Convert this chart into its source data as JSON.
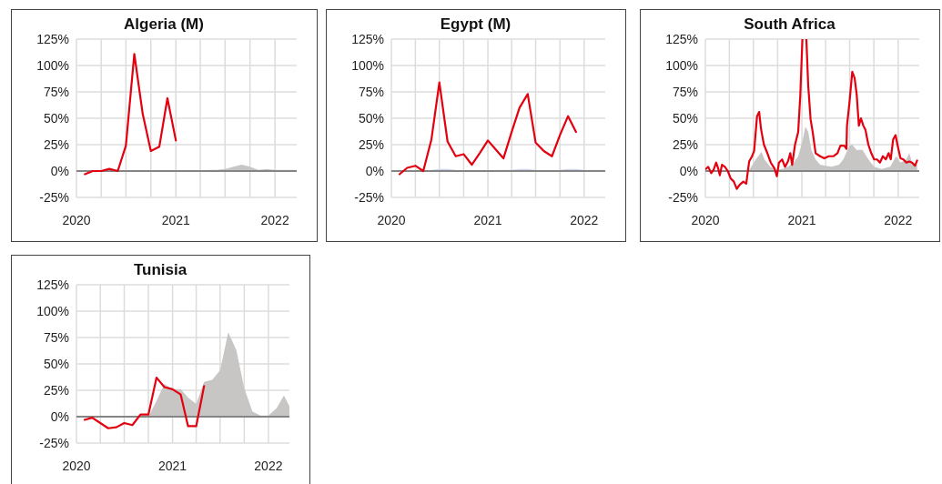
{
  "chart_data": [
    {
      "type": "line",
      "title": "Algeria (M)",
      "grid": true,
      "xlim": [
        "2020-01-01",
        "2022-03-22"
      ],
      "ylim": [
        -25,
        125
      ],
      "xticks": [
        {
          "value": "2020-01-01",
          "label": "2020"
        },
        {
          "value": "2020-04-01",
          "label": null
        },
        {
          "value": "2020-07-01",
          "label": null
        },
        {
          "value": "2020-10-01",
          "label": null
        },
        {
          "value": "2021-01-01",
          "label": "2021"
        },
        {
          "value": "2021-04-01",
          "label": null
        },
        {
          "value": "2021-07-01",
          "label": null
        },
        {
          "value": "2021-10-01",
          "label": null
        },
        {
          "value": "2022-01-01",
          "label": "2022"
        }
      ],
      "yticks": [
        {
          "value": -25,
          "label": "-25%"
        },
        {
          "value": 0,
          "label": "0%"
        },
        {
          "value": 25,
          "label": "25%"
        },
        {
          "value": 50,
          "label": "50%"
        },
        {
          "value": 75,
          "label": "75%"
        },
        {
          "value": 100,
          "label": "100%"
        },
        {
          "value": 125,
          "label": "125%"
        }
      ],
      "series": [
        {
          "type": "area",
          "color": "#c8c6c5",
          "x": [
            "2020-01",
            "2020-04",
            "2020-07",
            "2020-10",
            "2021-01",
            "2021-03",
            "2021-04",
            "2021-05",
            "2021-06",
            "2021-07",
            "2021-08",
            "2021-09",
            "2021-10",
            "2021-11",
            "2021-12",
            "2022-01",
            "2022-02",
            "2022-03",
            "2022-03-22"
          ],
          "values": [
            0,
            0,
            0,
            0,
            0,
            0,
            0,
            1,
            1,
            2,
            4,
            6,
            4,
            1,
            2,
            1,
            1,
            1,
            1
          ]
        },
        {
          "color": "#e3000f",
          "x": [
            "2020-02",
            "2020-03",
            "2020-04",
            "2020-05",
            "2020-06",
            "2020-07",
            "2020-08",
            "2020-09",
            "2020-10",
            "2020-11",
            "2020-12",
            "2021-01"
          ],
          "values": [
            -3,
            0,
            0,
            2,
            0,
            24,
            111,
            54,
            19,
            23,
            69,
            29
          ]
        }
      ]
    },
    {
      "type": "line",
      "title": "Egypt (M)",
      "grid": true,
      "xlim": [
        "2020-01-01",
        "2022-03-22"
      ],
      "ylim": [
        -25,
        125
      ],
      "xticks": [
        {
          "value": "2020-01-01",
          "label": "2020"
        },
        {
          "value": "2020-04-01",
          "label": null
        },
        {
          "value": "2020-07-01",
          "label": null
        },
        {
          "value": "2020-10-01",
          "label": null
        },
        {
          "value": "2021-01-01",
          "label": "2021"
        },
        {
          "value": "2021-04-01",
          "label": null
        },
        {
          "value": "2021-07-01",
          "label": null
        },
        {
          "value": "2021-10-01",
          "label": null
        },
        {
          "value": "2022-01-01",
          "label": "2022"
        }
      ],
      "yticks": [
        {
          "value": -25,
          "label": "-25%"
        },
        {
          "value": 0,
          "label": "0%"
        },
        {
          "value": 25,
          "label": "25%"
        },
        {
          "value": 50,
          "label": "50%"
        },
        {
          "value": 75,
          "label": "75%"
        },
        {
          "value": 100,
          "label": "100%"
        },
        {
          "value": 125,
          "label": "125%"
        }
      ],
      "series": [
        {
          "type": "area",
          "color": "#cdd3ea",
          "x": [
            "2020-01",
            "2020-05",
            "2020-06",
            "2020-07",
            "2020-08",
            "2020-09",
            "2020-10",
            "2021-01",
            "2021-02",
            "2021-03",
            "2021-04",
            "2021-05",
            "2021-06",
            "2021-07",
            "2021-08",
            "2021-09",
            "2021-10",
            "2021-11",
            "2021-12",
            "2022-01",
            "2022-02",
            "2022-03",
            "2022-03-22"
          ],
          "values": [
            0,
            0,
            1,
            2,
            2,
            1,
            0,
            0,
            1,
            1,
            1,
            2,
            2,
            1,
            0,
            0,
            1,
            2,
            2,
            1,
            1,
            1,
            1
          ]
        },
        {
          "color": "#e3000f",
          "x": [
            "2020-02",
            "2020-03",
            "2020-04",
            "2020-05",
            "2020-06",
            "2020-07",
            "2020-08",
            "2020-09",
            "2020-10",
            "2020-11",
            "2020-12",
            "2021-01",
            "2021-02",
            "2021-03",
            "2021-04",
            "2021-05",
            "2021-06",
            "2021-07",
            "2021-08",
            "2021-09",
            "2021-10",
            "2021-11",
            "2021-12"
          ],
          "values": [
            -3,
            3,
            5,
            0,
            30,
            84,
            28,
            14,
            16,
            6,
            17,
            29,
            20,
            12,
            37,
            60,
            73,
            27,
            19,
            14,
            34,
            52,
            37
          ]
        }
      ]
    },
    {
      "type": "line",
      "title": "South Africa",
      "grid": true,
      "xlim": [
        "2020-01-01",
        "2022-03-22"
      ],
      "ylim": [
        -25,
        125
      ],
      "xticks": [
        {
          "value": "2020-01-01",
          "label": "2020"
        },
        {
          "value": "2020-04-01",
          "label": null
        },
        {
          "value": "2020-07-01",
          "label": null
        },
        {
          "value": "2020-10-01",
          "label": null
        },
        {
          "value": "2021-01-01",
          "label": "2021"
        },
        {
          "value": "2021-04-01",
          "label": null
        },
        {
          "value": "2021-07-01",
          "label": null
        },
        {
          "value": "2021-10-01",
          "label": null
        },
        {
          "value": "2022-01-01",
          "label": "2022"
        }
      ],
      "yticks": [
        {
          "value": -25,
          "label": "-25%"
        },
        {
          "value": 0,
          "label": "0%"
        },
        {
          "value": 25,
          "label": "25%"
        },
        {
          "value": 50,
          "label": "50%"
        },
        {
          "value": 75,
          "label": "75%"
        },
        {
          "value": 100,
          "label": "100%"
        },
        {
          "value": 125,
          "label": "125%"
        }
      ],
      "series": [
        {
          "type": "area",
          "color": "#c8c6c5",
          "x": [
            "2020-01-01",
            "2020-05-15",
            "2020-06-18",
            "2020-07-10",
            "2020-08-01",
            "2020-08-12",
            "2020-09-03",
            "2020-09-25",
            "2020-10-18",
            "2020-11-09",
            "2020-12-01",
            "2020-12-18",
            "2021-01-03",
            "2021-01-14",
            "2021-01-25",
            "2021-02-06",
            "2021-02-22",
            "2021-03-11",
            "2021-04-02",
            "2021-04-24",
            "2021-05-22",
            "2021-06-07",
            "2021-06-30",
            "2021-07-11",
            "2021-07-27",
            "2021-08-19",
            "2021-09-10",
            "2021-10-02",
            "2021-10-30",
            "2021-12-02",
            "2021-12-24",
            "2022-01-10",
            "2022-02-01",
            "2022-02-12",
            "2022-02-23",
            "2022-03-14"
          ],
          "values": [
            0,
            0,
            2,
            11,
            18,
            11,
            4,
            1,
            2,
            4,
            8,
            14,
            28,
            42,
            37,
            20,
            11,
            6,
            5,
            4,
            6,
            11,
            24,
            25,
            20,
            20,
            11,
            4,
            2,
            4,
            14,
            8,
            11,
            17,
            8,
            6
          ]
        },
        {
          "color": "#e3000f",
          "x": [
            "2020-01-03",
            "2020-01-12",
            "2020-01-23",
            "2020-02-01",
            "2020-02-11",
            "2020-02-19",
            "2020-02-25",
            "2020-03-04",
            "2020-03-15",
            "2020-03-26",
            "2020-04-06",
            "2020-04-18",
            "2020-04-29",
            "2020-05-10",
            "2020-05-24",
            "2020-06-04",
            "2020-06-15",
            "2020-06-26",
            "2020-07-04",
            "2020-07-15",
            "2020-07-23",
            "2020-07-30",
            "2020-08-10",
            "2020-08-23",
            "2020-09-05",
            "2020-09-20",
            "2020-09-28",
            "2020-10-06",
            "2020-10-18",
            "2020-10-29",
            "2020-11-09",
            "2020-11-18",
            "2020-11-25",
            "2020-12-06",
            "2020-12-18",
            "2020-12-26",
            "2021-01-03",
            "2021-01-10",
            "2021-01-18",
            "2021-01-25",
            "2021-02-03",
            "2021-02-11",
            "2021-02-22",
            "2021-03-11",
            "2021-03-27",
            "2021-04-13",
            "2021-04-30",
            "2021-05-16",
            "2021-05-27",
            "2021-06-11",
            "2021-06-19",
            "2021-06-21",
            "2021-06-30",
            "2021-07-11",
            "2021-07-20",
            "2021-07-28",
            "2021-08-05",
            "2021-08-13",
            "2021-08-22",
            "2021-08-30",
            "2021-09-10",
            "2021-09-21",
            "2021-10-02",
            "2021-10-13",
            "2021-10-24",
            "2021-11-04",
            "2021-11-15",
            "2021-11-26",
            "2021-12-04",
            "2021-12-13",
            "2021-12-22",
            "2021-12-31",
            "2022-01-10",
            "2022-01-21",
            "2022-02-01",
            "2022-02-12",
            "2022-02-23",
            "2022-03-06",
            "2022-03-14"
          ],
          "values": [
            2,
            4,
            -2,
            1,
            8,
            2,
            -4,
            6,
            4,
            0,
            -7,
            -10,
            -17,
            -13,
            -10,
            -12,
            9,
            14,
            19,
            52,
            56,
            40,
            25,
            17,
            8,
            2,
            -5,
            8,
            11,
            4,
            9,
            17,
            6,
            25,
            37,
            72,
            125,
            null,
            125,
            81,
            49,
            37,
            17,
            14,
            12,
            14,
            14,
            17,
            24,
            24,
            21,
            43,
            64,
            94,
            88,
            72,
            43,
            50,
            43,
            39,
            25,
            17,
            11,
            11,
            8,
            14,
            11,
            17,
            11,
            30,
            34,
            23,
            12,
            11,
            8,
            9,
            8,
            5,
            10
          ]
        }
      ]
    },
    {
      "type": "line",
      "title": "Tunisia",
      "grid": true,
      "xlim": [
        "2020-01-01",
        "2022-03-22"
      ],
      "ylim": [
        -25,
        125
      ],
      "xticks": [
        {
          "value": "2020-01-01",
          "label": "2020"
        },
        {
          "value": "2020-04-01",
          "label": null
        },
        {
          "value": "2020-07-01",
          "label": null
        },
        {
          "value": "2020-10-01",
          "label": null
        },
        {
          "value": "2021-01-01",
          "label": "2021"
        },
        {
          "value": "2021-04-01",
          "label": null
        },
        {
          "value": "2021-07-01",
          "label": null
        },
        {
          "value": "2021-10-01",
          "label": null
        },
        {
          "value": "2022-01-01",
          "label": "2022"
        }
      ],
      "yticks": [
        {
          "value": -25,
          "label": "-25%"
        },
        {
          "value": 0,
          "label": "0%"
        },
        {
          "value": 25,
          "label": "25%"
        },
        {
          "value": 50,
          "label": "50%"
        },
        {
          "value": 75,
          "label": "75%"
        },
        {
          "value": 100,
          "label": "100%"
        },
        {
          "value": 125,
          "label": "125%"
        }
      ],
      "series": [
        {
          "type": "area",
          "color": "#c8c6c5",
          "x": [
            "2020-01",
            "2020-10",
            "2020-11",
            "2020-12",
            "2021-01",
            "2021-02",
            "2021-03",
            "2021-04",
            "2021-05",
            "2021-06",
            "2021-07",
            "2021-08",
            "2021-09",
            "2021-10",
            "2021-11",
            "2021-12",
            "2022-01",
            "2022-02",
            "2022-03",
            "2022-03-22"
          ],
          "values": [
            0,
            0,
            15,
            31,
            26,
            26,
            18,
            12,
            33,
            35,
            44,
            80,
            63,
            27,
            5,
            1,
            1,
            8,
            20,
            10
          ]
        },
        {
          "color": "#e3000f",
          "x": [
            "2020-02",
            "2020-03",
            "2020-04",
            "2020-05",
            "2020-06",
            "2020-07",
            "2020-08",
            "2020-09",
            "2020-10",
            "2020-11",
            "2020-12",
            "2021-01",
            "2021-02",
            "2021-03",
            "2021-04",
            "2021-05"
          ],
          "values": [
            -3,
            -1,
            -6,
            -11,
            -10,
            -6,
            -8,
            2,
            2,
            37,
            28,
            26,
            21,
            -9,
            -9,
            29
          ]
        }
      ]
    }
  ]
}
